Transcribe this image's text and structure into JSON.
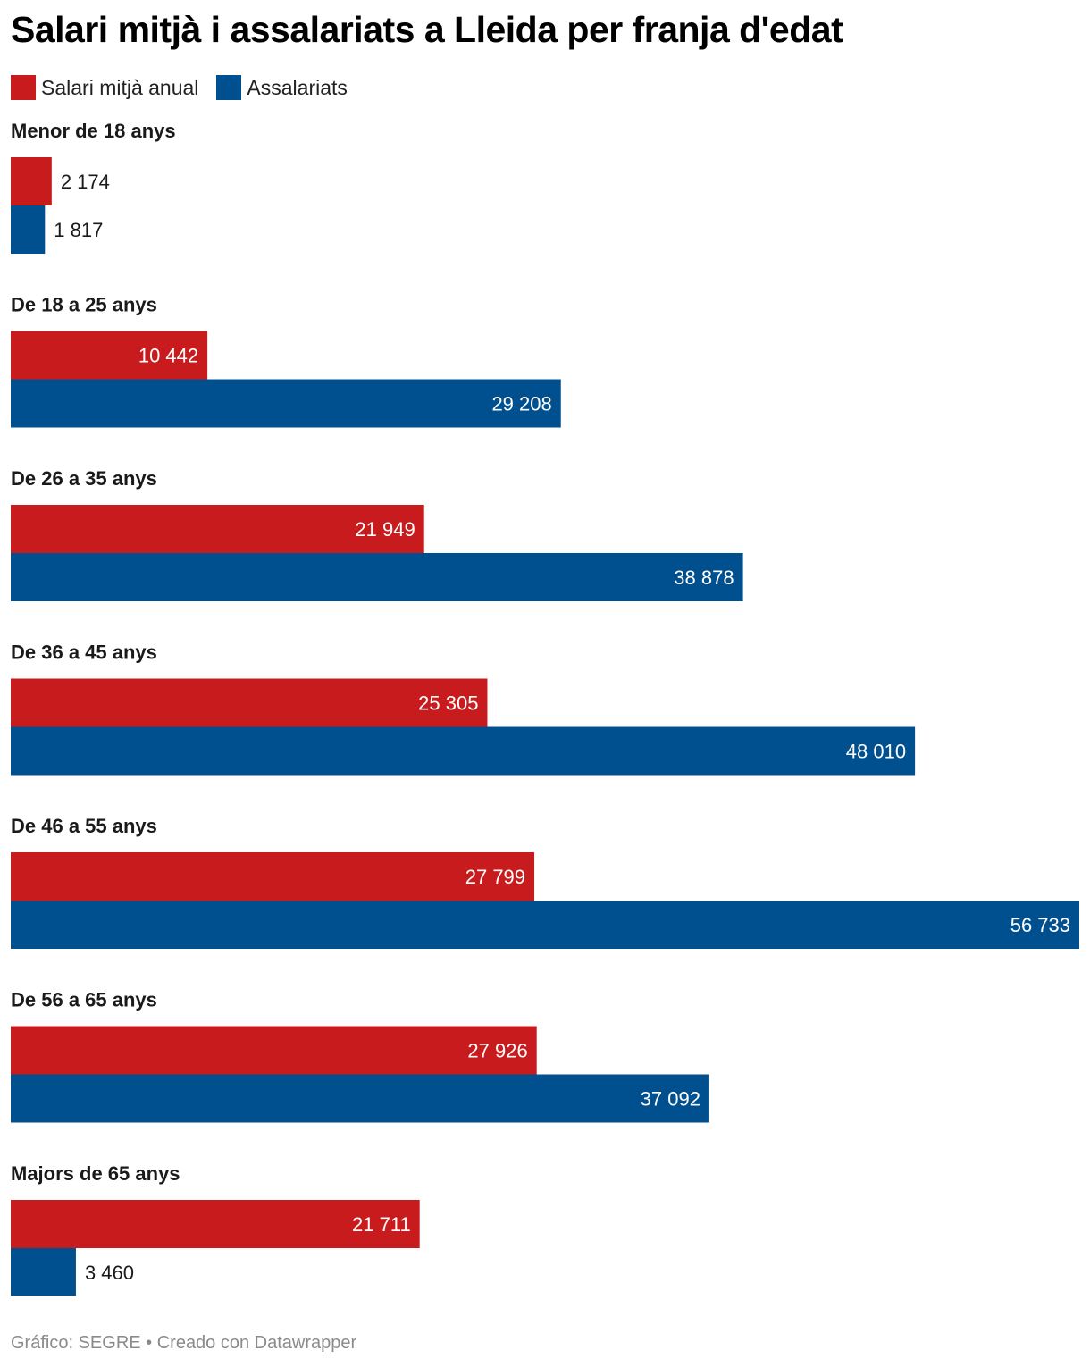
{
  "title": "Salari mitjà i assalariats a Lleida per franja d'edat",
  "legend": [
    {
      "label": "Salari mitjà anual",
      "color": "#c81b1e"
    },
    {
      "label": "Assalariats",
      "color": "#004f8f"
    }
  ],
  "footer": "Gráfico: SEGRE • Creado con Datawrapper",
  "chart_data": {
    "type": "bar",
    "orientation": "horizontal",
    "title": "Salari mitjà i assalariats a Lleida per franja d'edat",
    "categories": [
      "Menor de 18 anys",
      "De 18 a 25 anys",
      "De 26 a 35 anys",
      "De 36 a 45 anys",
      "De 46 a 55 anys",
      "De 56 a 65 anys",
      "Majors de 65 anys"
    ],
    "series": [
      {
        "name": "Salari mitjà anual",
        "color": "#c81b1e",
        "values": [
          2174,
          10442,
          21949,
          25305,
          27799,
          27926,
          21711
        ],
        "labels": [
          "2 174",
          "10 442",
          "21 949",
          "25 305",
          "27 799",
          "27 926",
          "21 711"
        ]
      },
      {
        "name": "Assalariats",
        "color": "#004f8f",
        "values": [
          1817,
          29208,
          38878,
          48010,
          56733,
          37092,
          3460
        ],
        "labels": [
          "1 817",
          "29 208",
          "38 878",
          "48 010",
          "56 733",
          "37 092",
          "3 460"
        ]
      }
    ],
    "xlim": [
      0,
      56733
    ],
    "grid": false,
    "legend_position": "top-left"
  }
}
